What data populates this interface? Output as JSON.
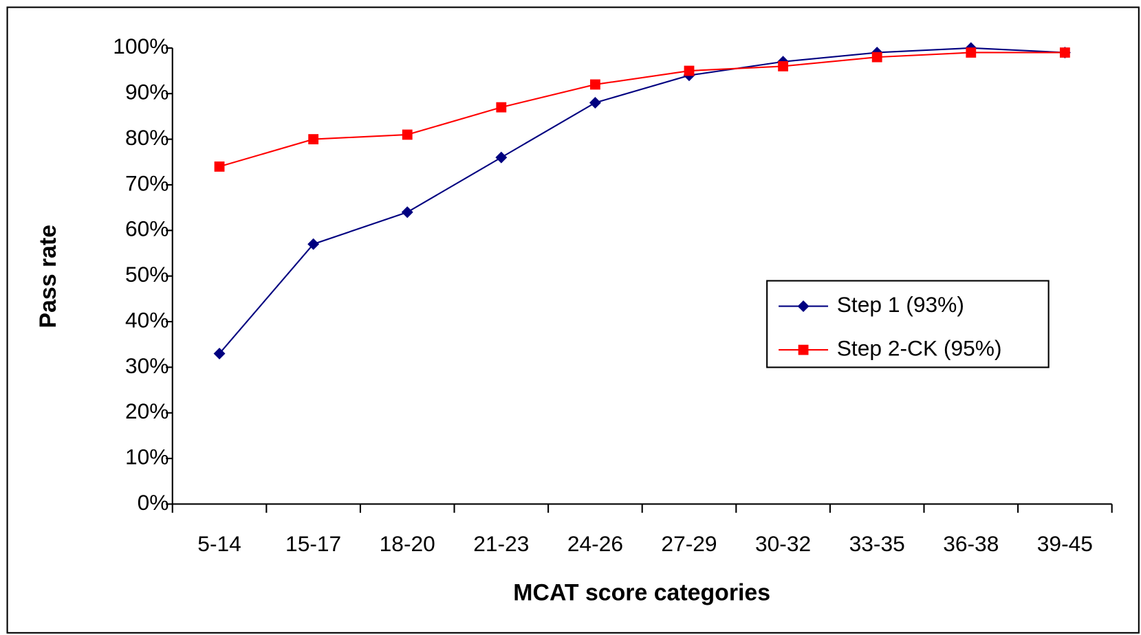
{
  "chart_data": {
    "type": "line",
    "x_label": "MCAT score categories",
    "y_label": "Pass rate",
    "categories": [
      "5-14",
      "15-17",
      "18-20",
      "21-23",
      "24-26",
      "27-29",
      "30-32",
      "33-35",
      "36-38",
      "39-45"
    ],
    "series": [
      {
        "name": "Step 1 (93%)",
        "color": "#000080",
        "marker": "diamond",
        "values": [
          33,
          57,
          64,
          76,
          88,
          94,
          97,
          99,
          100,
          99
        ]
      },
      {
        "name": "Step 2-CK (95%)",
        "color": "#ff0000",
        "marker": "square",
        "values": [
          74,
          80,
          81,
          87,
          92,
          95,
          96,
          98,
          99,
          99
        ]
      }
    ],
    "ylim": [
      0,
      100
    ],
    "yticks": [
      {
        "value": 0,
        "label": "0%"
      },
      {
        "value": 10,
        "label": "10%"
      },
      {
        "value": 20,
        "label": "20%"
      },
      {
        "value": 30,
        "label": "30%"
      },
      {
        "value": 40,
        "label": "40%"
      },
      {
        "value": 50,
        "label": "50%"
      },
      {
        "value": 60,
        "label": "60%"
      },
      {
        "value": 70,
        "label": "70%"
      },
      {
        "value": 80,
        "label": "80%"
      },
      {
        "value": 90,
        "label": "90%"
      },
      {
        "value": 100,
        "label": "100%"
      }
    ],
    "grid": false,
    "legend": "right"
  }
}
